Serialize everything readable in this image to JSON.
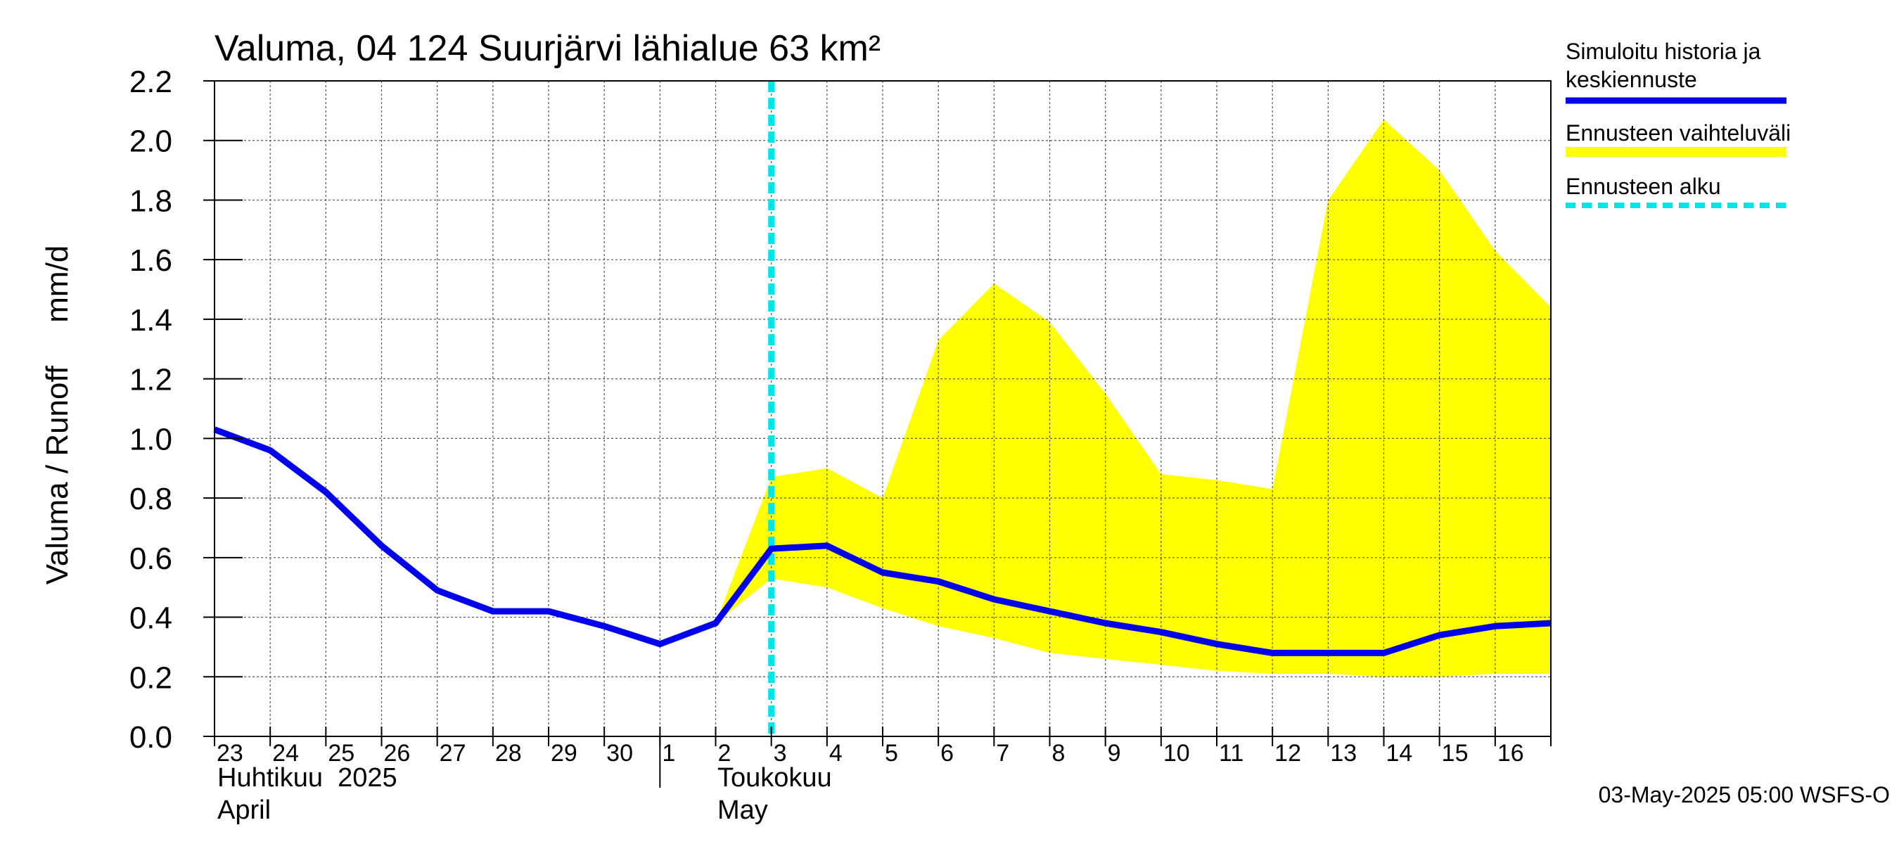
{
  "chart_data": {
    "type": "area",
    "title": "Valuma, 04 124 Suurjärvi lähialue 63 km²",
    "ylabel": "Valuma / Runoff     mm/d",
    "ylim": [
      0.0,
      2.2
    ],
    "yticks": [
      "0.0",
      "0.2",
      "0.4",
      "0.6",
      "0.8",
      "1.0",
      "1.2",
      "1.4",
      "1.6",
      "1.8",
      "2.0",
      "2.2"
    ],
    "x_day_range": [
      0,
      24
    ],
    "x_tick_labels": [
      "23",
      "24",
      "25",
      "26",
      "27",
      "28",
      "29",
      "30",
      "1",
      "2",
      "3",
      "4",
      "5",
      "6",
      "7",
      "8",
      "9",
      "10",
      "11",
      "12",
      "13",
      "14",
      "15",
      "16"
    ],
    "month_labels": [
      {
        "line1": "Huhtikuu  2025",
        "line2": "April"
      },
      {
        "line1": "Toukokuu",
        "line2": "May"
      }
    ],
    "forecast_start_day": 10,
    "series": [
      {
        "name": "Simuloitu historia ja keskiennuste",
        "color": "#0000ee",
        "x": [
          0,
          1,
          2,
          3,
          4,
          5,
          6,
          7,
          8,
          9,
          10,
          11,
          12,
          13,
          14,
          15,
          16,
          17,
          18,
          19,
          20,
          21,
          22,
          23,
          24
        ],
        "values": [
          1.03,
          0.96,
          0.82,
          0.64,
          0.49,
          0.42,
          0.42,
          0.37,
          0.31,
          0.38,
          0.63,
          0.64,
          0.55,
          0.52,
          0.46,
          0.42,
          0.38,
          0.35,
          0.31,
          0.28,
          0.28,
          0.28,
          0.34,
          0.37,
          0.38
        ]
      }
    ],
    "band": {
      "name": "Ennusteen vaihteluväli",
      "color": "#ffff00",
      "x": [
        9,
        10,
        11,
        12,
        13,
        14,
        15,
        16,
        17,
        18,
        19,
        20,
        21,
        22,
        23,
        24
      ],
      "upper": [
        0.38,
        0.87,
        0.9,
        0.8,
        1.33,
        1.52,
        1.39,
        1.15,
        0.88,
        0.86,
        0.83,
        1.8,
        2.07,
        1.9,
        1.63,
        1.44
      ],
      "lower": [
        0.38,
        0.53,
        0.5,
        0.43,
        0.37,
        0.33,
        0.28,
        0.26,
        0.24,
        0.22,
        0.21,
        0.21,
        0.2,
        0.2,
        0.21,
        0.21
      ]
    },
    "legend": {
      "placement": "right",
      "items": [
        {
          "label_line1": "Simuloitu historia ja",
          "label_line2": "keskiennuste",
          "color": "#0000ee",
          "style": "line"
        },
        {
          "label_line1": "Ennusteen vaihteluväli",
          "label_line2": "",
          "color": "#ffff00",
          "style": "band"
        },
        {
          "label_line1": "Ennusteen alku",
          "label_line2": "",
          "color": "#00e5e5",
          "style": "dashed"
        }
      ]
    },
    "forecast_line_color": "#00e5e5",
    "timestamp": "03-May-2025 05:00 WSFS-O"
  }
}
